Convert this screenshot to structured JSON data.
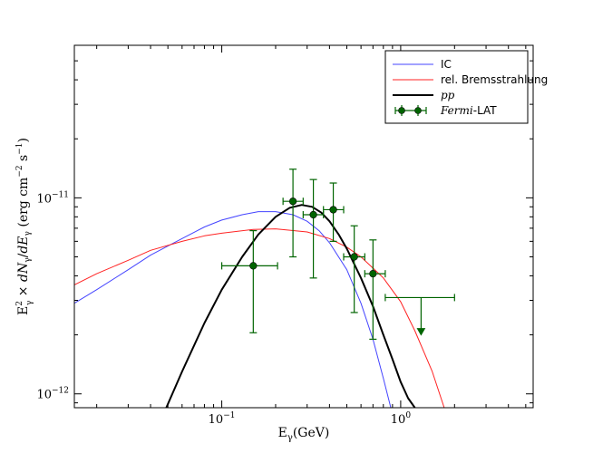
{
  "chart_data": {
    "type": "line",
    "x_scale": "log",
    "y_scale": "log",
    "xlim": [
      0.015,
      5.5
    ],
    "ylim": [
      8.5e-13,
      6e-11
    ],
    "xlabel": "Eγ(GeV)",
    "ylabel": "E²γ × dNγ/dEγ (erg cm⁻² s⁻¹)",
    "x_ticks": [
      {
        "value": 0.1,
        "base": "10",
        "exp": "−1"
      },
      {
        "value": 1,
        "base": "10",
        "exp": "0"
      }
    ],
    "y_ticks": [
      {
        "value": 1e-12,
        "base": "10",
        "exp": "−12"
      },
      {
        "value": 1e-11,
        "base": "10",
        "exp": "−11"
      }
    ],
    "grid": false,
    "legend_position": "top-right",
    "series": [
      {
        "name": "IC",
        "color": "#4444ff",
        "kind": "line",
        "x": [
          0.015,
          0.02,
          0.03,
          0.04,
          0.06,
          0.08,
          0.1,
          0.13,
          0.16,
          0.2,
          0.25,
          0.3,
          0.35,
          0.4,
          0.5,
          0.6,
          0.7,
          0.8,
          0.88
        ],
        "y": [
          2.9e-12,
          3.4e-12,
          4.3e-12,
          5.1e-12,
          6.2e-12,
          7.1e-12,
          7.7e-12,
          8.2e-12,
          8.5e-12,
          8.5e-12,
          8.2e-12,
          7.6e-12,
          6.8e-12,
          5.9e-12,
          4.3e-12,
          2.9e-12,
          1.9e-12,
          1.2e-12,
          8.5e-13
        ]
      },
      {
        "name": "rel. Bremsstrahlung",
        "color": "#ff2222",
        "kind": "line",
        "x": [
          0.015,
          0.02,
          0.03,
          0.04,
          0.06,
          0.08,
          0.1,
          0.15,
          0.2,
          0.3,
          0.4,
          0.5,
          0.6,
          0.8,
          1.0,
          1.2,
          1.5,
          1.75
        ],
        "y": [
          3.6e-12,
          4.1e-12,
          4.8e-12,
          5.4e-12,
          6e-12,
          6.4e-12,
          6.6e-12,
          6.9e-12,
          6.95e-12,
          6.7e-12,
          6.2e-12,
          5.6e-12,
          5e-12,
          3.9e-12,
          2.95e-12,
          2.1e-12,
          1.3e-12,
          8.5e-13
        ]
      },
      {
        "name": "pp",
        "name_style": "italic",
        "color": "#000000",
        "kind": "line",
        "x": [
          0.049,
          0.06,
          0.08,
          0.1,
          0.13,
          0.16,
          0.2,
          0.24,
          0.28,
          0.32,
          0.36,
          0.4,
          0.45,
          0.5,
          0.6,
          0.7,
          0.8,
          0.9,
          1.0,
          1.1,
          1.2
        ],
        "y": [
          8.5e-13,
          1.3e-12,
          2.3e-12,
          3.4e-12,
          5e-12,
          6.5e-12,
          8e-12,
          8.9e-12,
          9.2e-12,
          9e-12,
          8.4e-12,
          7.6e-12,
          6.5e-12,
          5.5e-12,
          3.9e-12,
          2.8e-12,
          2e-12,
          1.5e-12,
          1.15e-12,
          9.5e-13,
          8.5e-13
        ]
      },
      {
        "name": "Fermi-LAT",
        "name_italic_part": "Fermi",
        "name_plain_part": "-LAT",
        "color": "#006400",
        "kind": "points",
        "points": [
          {
            "x": 0.15,
            "y": 4.5e-12,
            "xerr": [
              0.1,
              0.205
            ],
            "yerr": [
              2.05e-12,
              6.8e-12
            ]
          },
          {
            "x": 0.25,
            "y": 9.6e-12,
            "xerr": [
              0.22,
              0.285
            ],
            "yerr": [
              5e-12,
              1.4e-11
            ]
          },
          {
            "x": 0.325,
            "y": 8.2e-12,
            "xerr": [
              0.285,
              0.37
            ],
            "yerr": [
              3.9e-12,
              1.24e-11
            ]
          },
          {
            "x": 0.42,
            "y": 8.7e-12,
            "xerr": [
              0.37,
              0.48
            ],
            "yerr": [
              6e-12,
              1.19e-11
            ]
          },
          {
            "x": 0.55,
            "y": 5e-12,
            "xerr": [
              0.48,
              0.63
            ],
            "yerr": [
              2.6e-12,
              7.2e-12
            ]
          },
          {
            "x": 0.7,
            "y": 4.1e-12,
            "xerr": [
              0.63,
              0.82
            ],
            "yerr": [
              1.9e-12,
              6.1e-12
            ]
          }
        ],
        "upper_limits": [
          {
            "x": 1.3,
            "y": 3.1e-12,
            "xerr": [
              0.82,
              2.0
            ],
            "arrow_to": 2e-12
          }
        ]
      }
    ]
  }
}
